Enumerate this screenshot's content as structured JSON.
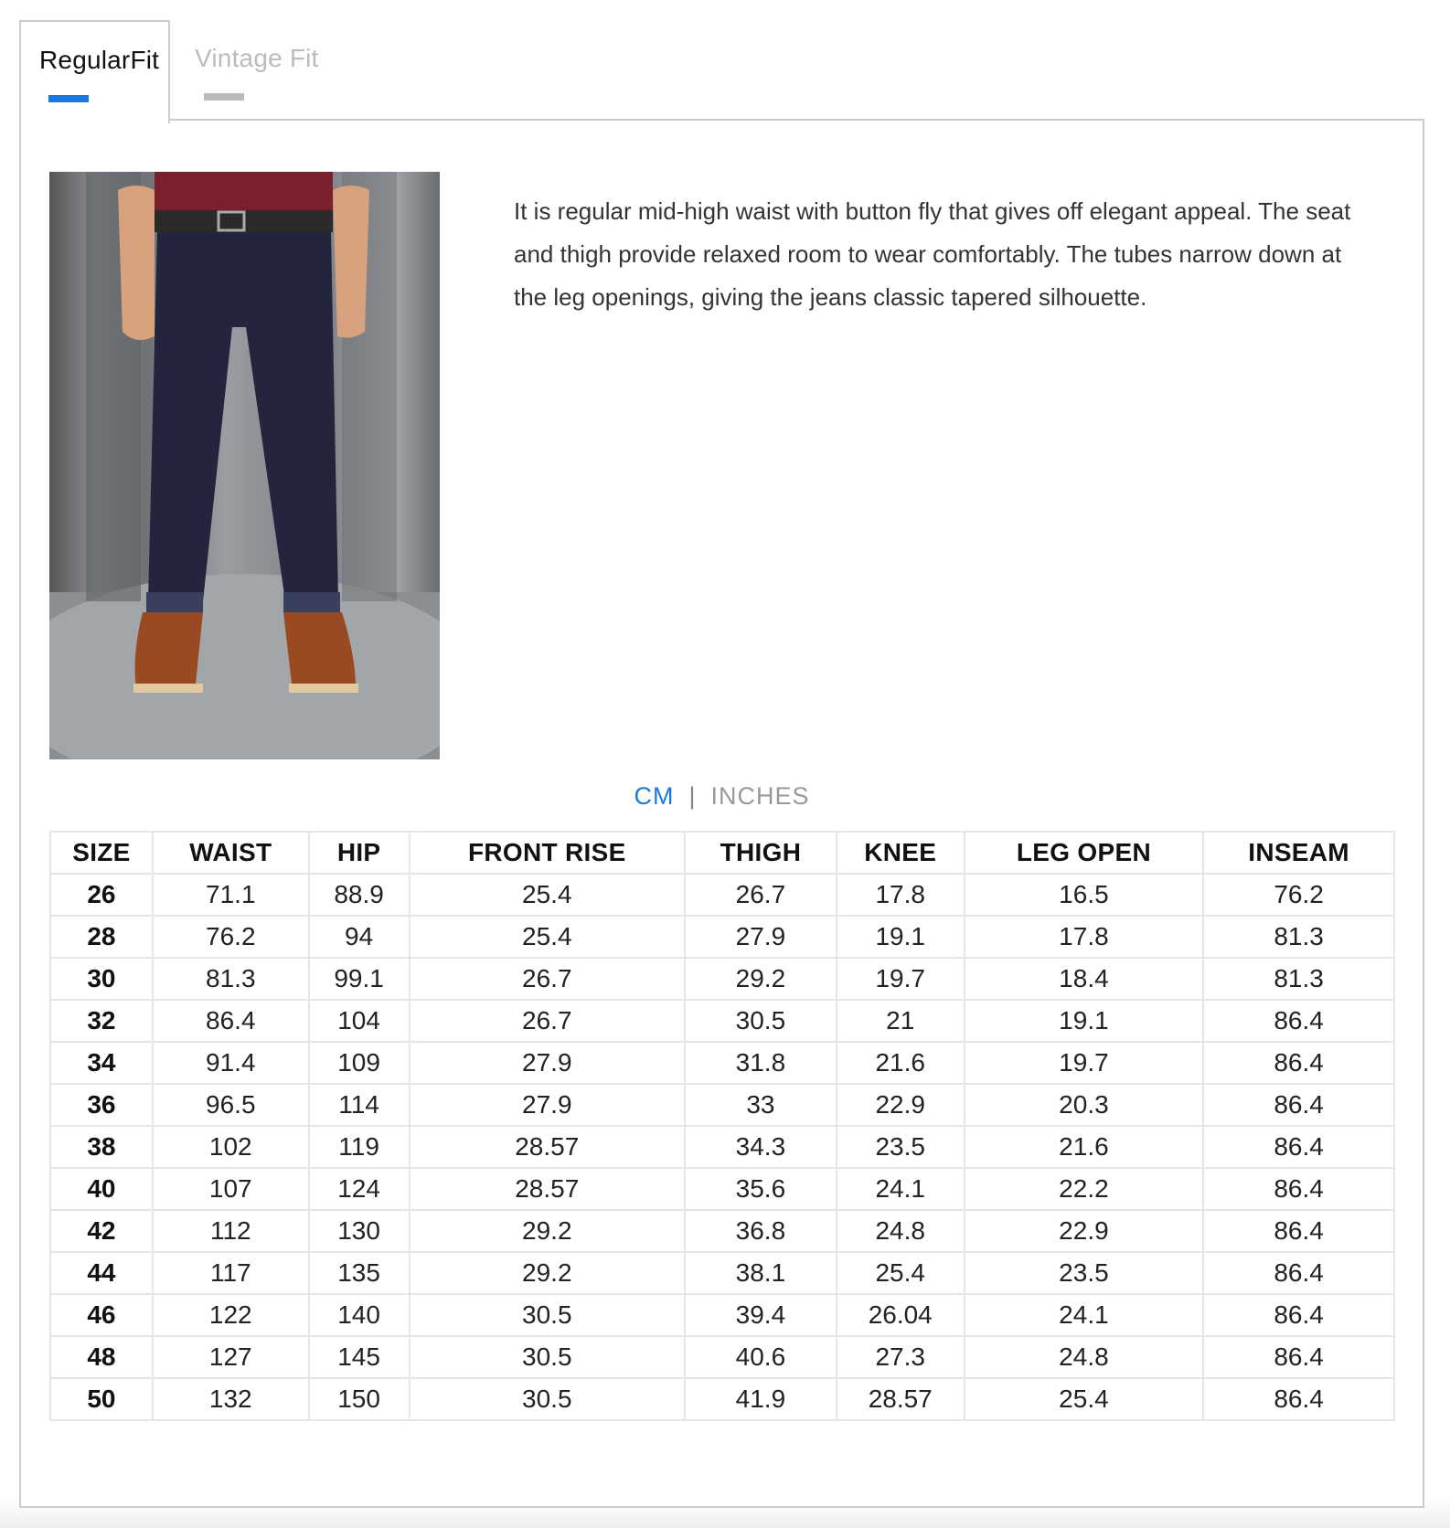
{
  "tabs": [
    {
      "label": "RegularFit",
      "active": true
    },
    {
      "label": "Vintage Fit",
      "active": false
    }
  ],
  "colors": {
    "accent": "#1a78e0",
    "inactive": "#bbbbbb"
  },
  "description": "It is regular mid-high waist with button fly that gives off elegant appeal. The seat and thigh provide relaxed room to wear comfortably. The tubes narrow down at the leg openings, giving the jeans classic tapered silhouette.",
  "units": {
    "cm": "CM",
    "separator": "|",
    "inches": "INCHES",
    "selected": "CM"
  },
  "table": {
    "headers": [
      "SIZE",
      "WAIST",
      "HIP",
      "FRONT RISE",
      "THIGH",
      "KNEE",
      "LEG OPEN",
      "INSEAM"
    ],
    "rows": [
      [
        "26",
        "71.1",
        "88.9",
        "25.4",
        "26.7",
        "17.8",
        "16.5",
        "76.2"
      ],
      [
        "28",
        "76.2",
        "94",
        "25.4",
        "27.9",
        "19.1",
        "17.8",
        "81.3"
      ],
      [
        "30",
        "81.3",
        "99.1",
        "26.7",
        "29.2",
        "19.7",
        "18.4",
        "81.3"
      ],
      [
        "32",
        "86.4",
        "104",
        "26.7",
        "30.5",
        "21",
        "19.1",
        "86.4"
      ],
      [
        "34",
        "91.4",
        "109",
        "27.9",
        "31.8",
        "21.6",
        "19.7",
        "86.4"
      ],
      [
        "36",
        "96.5",
        "114",
        "27.9",
        "33",
        "22.9",
        "20.3",
        "86.4"
      ],
      [
        "38",
        "102",
        "119",
        "28.57",
        "34.3",
        "23.5",
        "21.6",
        "86.4"
      ],
      [
        "40",
        "107",
        "124",
        "28.57",
        "35.6",
        "24.1",
        "22.2",
        "86.4"
      ],
      [
        "42",
        "112",
        "130",
        "29.2",
        "36.8",
        "24.8",
        "22.9",
        "86.4"
      ],
      [
        "44",
        "117",
        "135",
        "29.2",
        "38.1",
        "25.4",
        "23.5",
        "86.4"
      ],
      [
        "46",
        "122",
        "140",
        "30.5",
        "39.4",
        "26.04",
        "24.1",
        "86.4"
      ],
      [
        "48",
        "127",
        "145",
        "30.5",
        "40.6",
        "27.3",
        "24.8",
        "86.4"
      ],
      [
        "50",
        "132",
        "150",
        "30.5",
        "41.9",
        "28.57",
        "25.4",
        "86.4"
      ]
    ]
  }
}
